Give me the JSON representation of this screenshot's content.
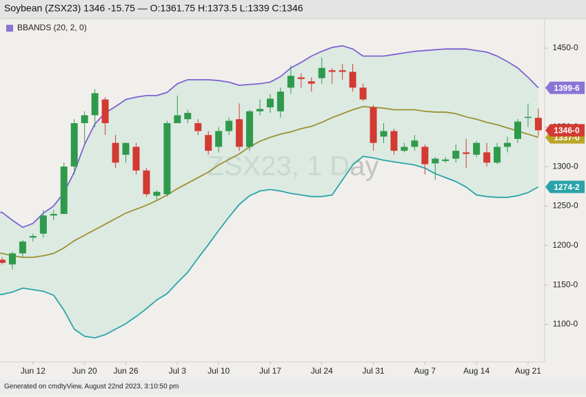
{
  "chart_data": {
    "type": "candlestick",
    "title": "Soybean (ZSX23) 1346 -15.75 — O:1361.75 H:1373.5 L:1339 C:1346",
    "watermark": "ZSX23, 1 Day",
    "footer": "Generated on cmdtyView, August 22nd 2023, 3:10:50 pm",
    "categories": [
      null,
      null,
      null,
      "Jun 12",
      null,
      null,
      null,
      null,
      "Jun 20",
      null,
      null,
      null,
      "Jun 26",
      null,
      null,
      null,
      null,
      "Jul 3",
      null,
      null,
      null,
      "Jul 10",
      null,
      null,
      null,
      null,
      "Jul 17",
      null,
      null,
      null,
      null,
      "Jul 24",
      null,
      null,
      null,
      null,
      "Jul 31",
      null,
      null,
      null,
      null,
      "Aug 7",
      null,
      null,
      null,
      null,
      "Aug 14",
      null,
      null,
      null,
      null,
      "Aug 21",
      null
    ],
    "open": [
      1182,
      1176,
      1190,
      1210,
      1215,
      1238,
      1240,
      1300,
      1355,
      1365,
      1385,
      1330,
      1315,
      1325,
      1295,
      1263,
      1265,
      1355,
      1360,
      1355,
      1340,
      1325,
      1345,
      1360,
      1325,
      1370,
      1375,
      1370,
      1400,
      1413,
      1408,
      1412,
      1422,
      1422,
      1420,
      1400,
      1375,
      1338,
      1345,
      1320,
      1325,
      1325,
      1304,
      1307,
      1310,
      1318,
      1315,
      1318,
      1305,
      1325,
      1335,
      1362,
      1361.75
    ],
    "high": [
      1185,
      1192,
      1207,
      1215,
      1245,
      1245,
      1305,
      1360,
      1370,
      1398,
      1388,
      1340,
      1330,
      1330,
      1298,
      1270,
      1358,
      1390,
      1372,
      1360,
      1345,
      1350,
      1362,
      1380,
      1372,
      1385,
      1392,
      1400,
      1428,
      1418,
      1413,
      1438,
      1425,
      1430,
      1430,
      1405,
      1378,
      1355,
      1348,
      1330,
      1340,
      1328,
      1312,
      1312,
      1328,
      1335,
      1332,
      1330,
      1330,
      1338,
      1360,
      1380,
      1373.5
    ],
    "low": [
      1176,
      1170,
      1185,
      1205,
      1210,
      1232,
      1240,
      1290,
      1330,
      1350,
      1340,
      1298,
      1305,
      1290,
      1262,
      1258,
      1262,
      1355,
      1355,
      1340,
      1315,
      1318,
      1340,
      1320,
      1320,
      1365,
      1368,
      1362,
      1392,
      1400,
      1395,
      1405,
      1405,
      1410,
      1395,
      1383,
      1320,
      1330,
      1315,
      1318,
      1320,
      1290,
      1283,
      1305,
      1305,
      1298,
      1312,
      1300,
      1303,
      1318,
      1330,
      1350,
      1339
    ],
    "close": [
      1178,
      1190,
      1205,
      1212,
      1238,
      1240,
      1300,
      1355,
      1365,
      1393,
      1355,
      1305,
      1330,
      1295,
      1265,
      1268,
      1355,
      1365,
      1368,
      1345,
      1320,
      1345,
      1358,
      1325,
      1370,
      1373,
      1386,
      1395,
      1415,
      1411,
      1405,
      1425,
      1420,
      1420,
      1400,
      1385,
      1330,
      1345,
      1320,
      1325,
      1333,
      1303,
      1310,
      1309,
      1320,
      1316,
      1330,
      1305,
      1325,
      1330,
      1357,
      1363,
      1346
    ],
    "up_color": "#2f9a4c",
    "down_color": "#d23a32",
    "indicator": {
      "name": "BBANDS (20, 2, 0)",
      "legend_color": "#8b74d6",
      "fill": "#cfe6dc",
      "upper_color": "#7d62d2",
      "middle_color": "#9a9130",
      "lower_color": "#2aa3a8",
      "upper": [
        1242,
        1232,
        1223,
        1228,
        1241,
        1250,
        1267,
        1293,
        1328,
        1354,
        1368,
        1376,
        1385,
        1388,
        1390,
        1390,
        1394,
        1405,
        1410,
        1410,
        1410,
        1409,
        1407,
        1403,
        1404,
        1405,
        1407,
        1414,
        1425,
        1432,
        1440,
        1446,
        1451,
        1453,
        1449,
        1440,
        1440,
        1440,
        1442,
        1444,
        1446,
        1447,
        1448,
        1449,
        1449,
        1449,
        1447,
        1445,
        1440,
        1433,
        1425,
        1413,
        1399.75
      ],
      "middle": [
        1190,
        1187,
        1185,
        1185,
        1187,
        1190,
        1197,
        1206,
        1213,
        1220,
        1227,
        1234,
        1241,
        1246,
        1251,
        1257,
        1264,
        1272,
        1279,
        1286,
        1293,
        1302,
        1309,
        1316,
        1325,
        1332,
        1337,
        1341,
        1344,
        1348,
        1351,
        1356,
        1362,
        1367,
        1372,
        1376,
        1375,
        1374,
        1372,
        1372,
        1372,
        1370,
        1369,
        1369,
        1367,
        1363,
        1360,
        1356,
        1353,
        1349,
        1345,
        1341,
        1337
      ],
      "lower": [
        1138,
        1141,
        1146,
        1144,
        1142,
        1137,
        1118,
        1094,
        1085,
        1083,
        1087,
        1094,
        1101,
        1110,
        1120,
        1131,
        1139,
        1153,
        1166,
        1184,
        1201,
        1219,
        1236,
        1252,
        1263,
        1269,
        1271,
        1269,
        1266,
        1264,
        1262,
        1262,
        1264,
        1283,
        1302,
        1313,
        1311,
        1308,
        1306,
        1304,
        1302,
        1298,
        1291,
        1286,
        1281,
        1274,
        1264,
        1262,
        1261,
        1261,
        1263,
        1267,
        1274.25
      ]
    },
    "price_labels": [
      {
        "value": 1337,
        "label": "1337-0",
        "color": "#b9a52a"
      },
      {
        "value": 1399.75,
        "label": "1399-6",
        "color": "#8b74d6"
      },
      {
        "value": 1346,
        "label": "1346-0",
        "color": "#d23a32"
      },
      {
        "value": 1274.25,
        "label": "1274-2",
        "color": "#2aa3a8"
      }
    ],
    "ylim": [
      1052.5,
      1487.5
    ],
    "yticks": [
      {
        "value": 1100,
        "label": "1100-0"
      },
      {
        "value": 1150,
        "label": "1150-0"
      },
      {
        "value": 1200,
        "label": "1200-0"
      },
      {
        "value": 1250,
        "label": "1250-0"
      },
      {
        "value": 1300,
        "label": "1300-0"
      },
      {
        "value": 1350,
        "label": "1350-0"
      },
      {
        "value": 1400,
        "label": "1400-0"
      },
      {
        "value": 1450,
        "label": "1450-0"
      }
    ]
  }
}
